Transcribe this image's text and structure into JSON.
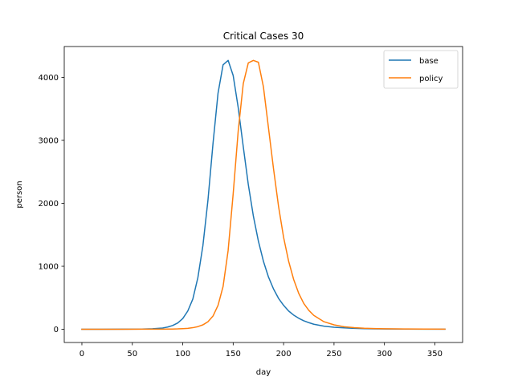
{
  "chart_data": {
    "type": "line",
    "title": "Critical Cases 30",
    "xlabel": "day",
    "ylabel": "person",
    "xlim": [
      -17.5,
      377.5
    ],
    "ylim": [
      -210,
      4490
    ],
    "xticks": [
      0,
      50,
      100,
      150,
      200,
      250,
      300,
      350
    ],
    "yticks": [
      0,
      1000,
      2000,
      3000,
      4000
    ],
    "grid": false,
    "legend_position": "top-right",
    "colors": {
      "base": "#1f77b4",
      "policy": "#ff7f0e"
    },
    "x": [
      0,
      20,
      40,
      60,
      70,
      80,
      85,
      90,
      95,
      100,
      105,
      110,
      115,
      120,
      125,
      130,
      135,
      140,
      145,
      150,
      155,
      160,
      165,
      170,
      175,
      180,
      185,
      190,
      195,
      200,
      205,
      210,
      215,
      220,
      225,
      230,
      240,
      250,
      260,
      270,
      280,
      290,
      300,
      320,
      340,
      360
    ],
    "series": [
      {
        "name": "base",
        "values": [
          0,
          0,
          1,
          3,
          8,
          20,
          35,
          60,
          100,
          170,
          290,
          480,
          820,
          1330,
          2050,
          2950,
          3750,
          4200,
          4270,
          4030,
          3520,
          2900,
          2300,
          1800,
          1400,
          1080,
          830,
          640,
          490,
          380,
          290,
          225,
          175,
          135,
          105,
          80,
          50,
          32,
          22,
          15,
          10,
          7,
          5,
          3,
          2,
          1
        ]
      },
      {
        "name": "policy",
        "values": [
          0,
          0,
          0,
          1,
          1,
          2,
          3,
          4,
          6,
          10,
          15,
          25,
          42,
          70,
          120,
          210,
          380,
          680,
          1250,
          2150,
          3150,
          3900,
          4230,
          4270,
          4240,
          3850,
          3200,
          2550,
          1950,
          1460,
          1080,
          790,
          570,
          410,
          300,
          220,
          120,
          70,
          40,
          25,
          16,
          11,
          8,
          5,
          3,
          2
        ]
      }
    ]
  }
}
